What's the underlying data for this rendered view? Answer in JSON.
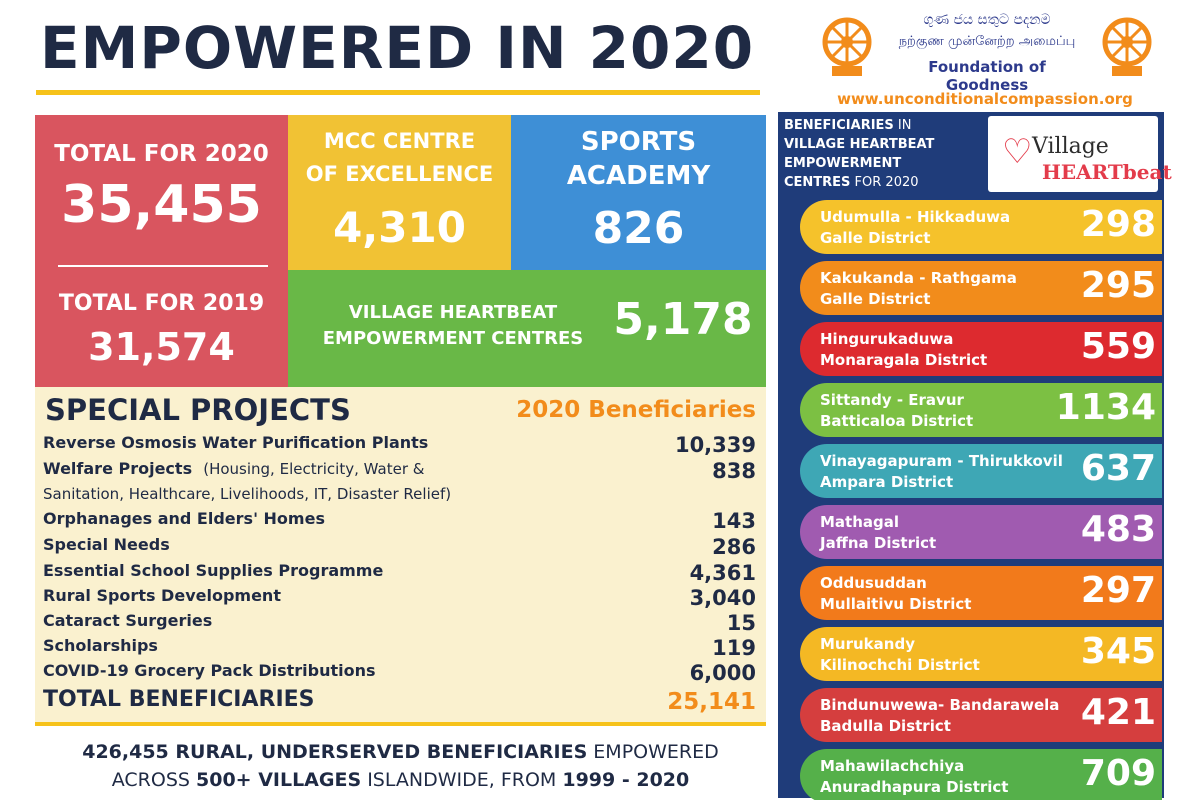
{
  "title": "EMPOWERED IN 2020",
  "logo": {
    "script_sinhala": "ගුණ ජය සතුට පදනම",
    "script_tamil": "நற்குண முன்னேற்ற அமைப்பு",
    "name": "Foundation of Goodness",
    "website": "www.unconditionalcompassion.org"
  },
  "tiles": {
    "total_2020": {
      "label": "TOTAL FOR 2020",
      "value": "35,455"
    },
    "total_2019": {
      "label": "TOTAL FOR 2019",
      "value": "31,574"
    },
    "mcc": {
      "label_line1": "MCC CENTRE",
      "label_line2": "OF EXCELLENCE",
      "value": "4,310"
    },
    "sports": {
      "label_line1": "SPORTS",
      "label_line2": "ACADEMY",
      "value": "826"
    },
    "village": {
      "label_line1": "VILLAGE HEARTBEAT",
      "label_line2": "EMPOWERMENT CENTRES",
      "value": "5,178"
    }
  },
  "special_projects": {
    "title": "SPECIAL PROJECTS",
    "column_header": "2020 Beneficiaries",
    "rows": [
      {
        "name": "Reverse Osmosis Water Purification Plants",
        "value": "10,339"
      },
      {
        "name": "Welfare Projects",
        "note": "(Housing, Electricity, Water &",
        "value": "838"
      },
      {
        "name": "Orphanages and Elders' Homes",
        "value": "143"
      },
      {
        "name": "Special Needs",
        "value": "286"
      },
      {
        "name": "Essential School Supplies Programme",
        "value": "4,361"
      },
      {
        "name": "Rural Sports Development",
        "value": "3,040"
      },
      {
        "name": "Cataract Surgeries",
        "value": "15"
      },
      {
        "name": "Scholarships",
        "value": "119"
      },
      {
        "name": "COVID-19 Grocery Pack Distributions",
        "value": "6,000"
      }
    ],
    "welfare_continuation": "Sanitation, Healthcare, Livelihoods, IT, Disaster Relief)",
    "total_label": "TOTAL BENEFICIARIES",
    "total_value": "25,141"
  },
  "footer": {
    "line1_bold": "426,455 RURAL, UNDERSERVED BENEFICIARIES",
    "line1_rest": " EMPOWERED",
    "line2_a": "ACROSS ",
    "line2_bold1": "500+ VILLAGES",
    "line2_b": " ISLANDWIDE, FROM ",
    "line2_bold2": "1999 - 2020"
  },
  "panel": {
    "head_line1_bold": "BENEFICIARIES",
    "head_line1_rest": " IN",
    "head_line2": "VILLAGE HEARTBEAT",
    "head_line3": "EMPOWERMENT",
    "head_line4_bold": "CENTRES",
    "head_line4_rest": " FOR 2020",
    "vh_logo_line1": "Village",
    "vh_logo_line2": "HEARTbeat",
    "centres": [
      {
        "place": "Udumulla - Hikkaduwa",
        "district": "Galle District",
        "value": "298",
        "color": "#f5c22b"
      },
      {
        "place": "Kakukanda - Rathgama",
        "district": "Galle District",
        "value": "295",
        "color": "#f28c1b"
      },
      {
        "place": "Hingurukaduwa",
        "district": "Monaragala District",
        "value": "559",
        "color": "#dd2a2f"
      },
      {
        "place": "Sittandy - Eravur",
        "district": "Batticaloa District",
        "value": "1134",
        "color": "#7cc043"
      },
      {
        "place": "Vinayagapuram - Thirukkovil",
        "district": "Ampara District",
        "value": "637",
        "color": "#3ea7b5"
      },
      {
        "place": "Mathagal",
        "district": "Jaffna District",
        "value": "483",
        "color": "#a05bb0"
      },
      {
        "place": "Oddusuddan",
        "district": "Mullaitivu District",
        "value": "297",
        "color": "#f27a1b"
      },
      {
        "place": "Murukandy",
        "district": "Kilinochchi District",
        "value": "345",
        "color": "#f4b824"
      },
      {
        "place": "Bindunuwewa- Bandarawela",
        "district": "Badulla District",
        "value": "421",
        "color": "#d53e3e"
      },
      {
        "place": "Mahawilachchiya",
        "district": "Anuradhapura District",
        "value": "709",
        "color": "#55b04a"
      }
    ]
  }
}
